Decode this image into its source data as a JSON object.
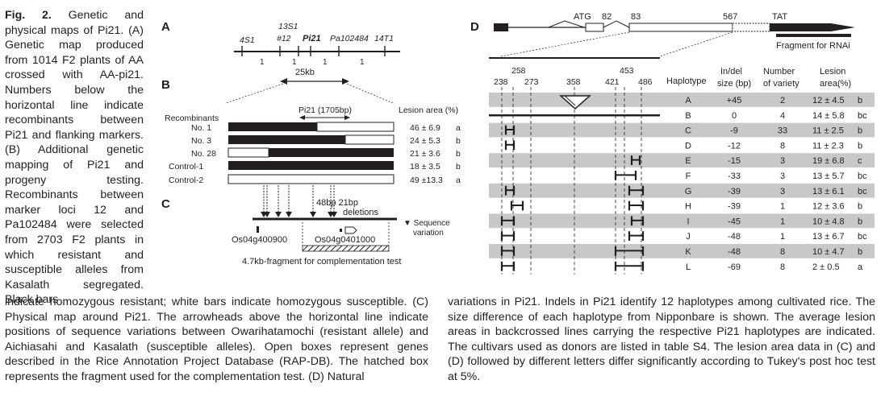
{
  "caption": {
    "fig_label": "Fig. 2.",
    "side_text": " Genetic and physical maps of Pi21. (A) Genetic map produced from 1014 F2 plants of AA crossed with AA-pi21. Numbers below the horizontal line indicate recombinants between Pi21 and flanking markers. (B) Additional genetic mapping of Pi21 and progeny testing. Recombinants between marker loci 12 and Pa102484 were selected from 2703 F2 plants in which resistant and susceptible alleles from Kasalath segregated. Black bars",
    "bottom_left": "indicate homozygous resistant; white bars indicate homozygous susceptible. (C) Physical map around Pi21. The arrowheads above the horizontal line indicate positions of sequence variations between Owarihatamochi (resistant allele) and Aichiasahi and Kasalath (susceptible alleles). Open boxes represent genes described in the Rice Annotation Project Database (RAP-DB). The hatched box represents the fragment used for the complementation test. (D) Natural",
    "bottom_right": "variations in Pi21. Indels in Pi21 identify 12 haplotypes among cultivated rice. The size difference of each haplotype from Nipponbare is shown. The average lesion areas in backcrossed lines carrying the respective Pi21 haplotypes are indicated. The cultivars used as donors are listed in table S4. The lesion area data in (C) and (D) followed by different letters differ significantly according to Tukey's post hoc test at 5%."
  },
  "panelA": {
    "label": "A",
    "markers": [
      "4S1",
      "13S1",
      "#12",
      "Pi21",
      "Pa102484",
      "14T1"
    ],
    "recombinants": [
      "1",
      "1",
      "1",
      "1"
    ],
    "scale": "25kb"
  },
  "panelB": {
    "label": "B",
    "gene_label": "Pi21 (1705bp)",
    "lesion_header": "Lesion area (%)",
    "recombinants_header": "Recombinants",
    "rows": [
      {
        "name": "No.  1",
        "lesion": "46 ± 6.9",
        "letter": "a"
      },
      {
        "name": "No.  3",
        "lesion": "24 ± 5.3",
        "letter": "b"
      },
      {
        "name": "No. 28",
        "lesion": "21 ± 3.6",
        "letter": "b"
      },
      {
        "name": "Control-1",
        "lesion": "18 ± 3.5",
        "letter": "b"
      },
      {
        "name": "Control-2",
        "lesion": "49 ±13.3",
        "letter": "a"
      }
    ]
  },
  "panelC": {
    "label": "C",
    "deletions": "48bp 21bp",
    "deletions2": "deletions",
    "seq_var1": "▼ Sequence",
    "seq_var2": "variation",
    "gene1": "Os04g400900",
    "gene2": "Os04g0401000",
    "fragment": "4.7kb-fragment for complementation test"
  },
  "panelD": {
    "label": "D",
    "exon_labels": [
      "ATG",
      "82",
      "83",
      "567",
      "TAT"
    ],
    "rnai": "Fragment for RNAi",
    "positions_top": [
      "258",
      "453"
    ],
    "positions": [
      "238",
      "273",
      "358",
      "421",
      "486"
    ],
    "col_haplotype": "Haplotype",
    "col_indel1": "In/del",
    "col_indel2": "size (bp)",
    "col_number1": "Number",
    "col_number2": "of variety",
    "col_lesion1": "Lesion",
    "col_lesion2": "area(%)",
    "rows": [
      {
        "hap": "A",
        "indel": "+45",
        "num": "2",
        "lesion": "12 ± 4.5",
        "letter": "b"
      },
      {
        "hap": "B",
        "indel": "0",
        "num": "4",
        "lesion": "14 ± 5.8",
        "letter": "bc"
      },
      {
        "hap": "C",
        "indel": "-9",
        "num": "33",
        "lesion": "11 ± 2.5",
        "letter": "b"
      },
      {
        "hap": "D",
        "indel": "-12",
        "num": "8",
        "lesion": "11 ± 2.3",
        "letter": "b"
      },
      {
        "hap": "E",
        "indel": "-15",
        "num": "3",
        "lesion": "19 ± 6.8",
        "letter": "c"
      },
      {
        "hap": "F",
        "indel": "-33",
        "num": "3",
        "lesion": "13 ± 5.7",
        "letter": "bc"
      },
      {
        "hap": "G",
        "indel": "-39",
        "num": "3",
        "lesion": "13 ± 6.1",
        "letter": "bc"
      },
      {
        "hap": "H",
        "indel": "-39",
        "num": "1",
        "lesion": "12 ± 3.6",
        "letter": "b"
      },
      {
        "hap": "I",
        "indel": "-45",
        "num": "1",
        "lesion": "10 ± 4.8",
        "letter": "b"
      },
      {
        "hap": "J",
        "indel": "-48",
        "num": "1",
        "lesion": "13 ± 6.7",
        "letter": "bc"
      },
      {
        "hap": "K",
        "indel": "-48",
        "num": "8",
        "lesion": "10 ± 4.7",
        "letter": "b"
      },
      {
        "hap": "L",
        "indel": "-69",
        "num": "8",
        "lesion": "2 ± 0.5",
        "letter": "a"
      }
    ]
  }
}
